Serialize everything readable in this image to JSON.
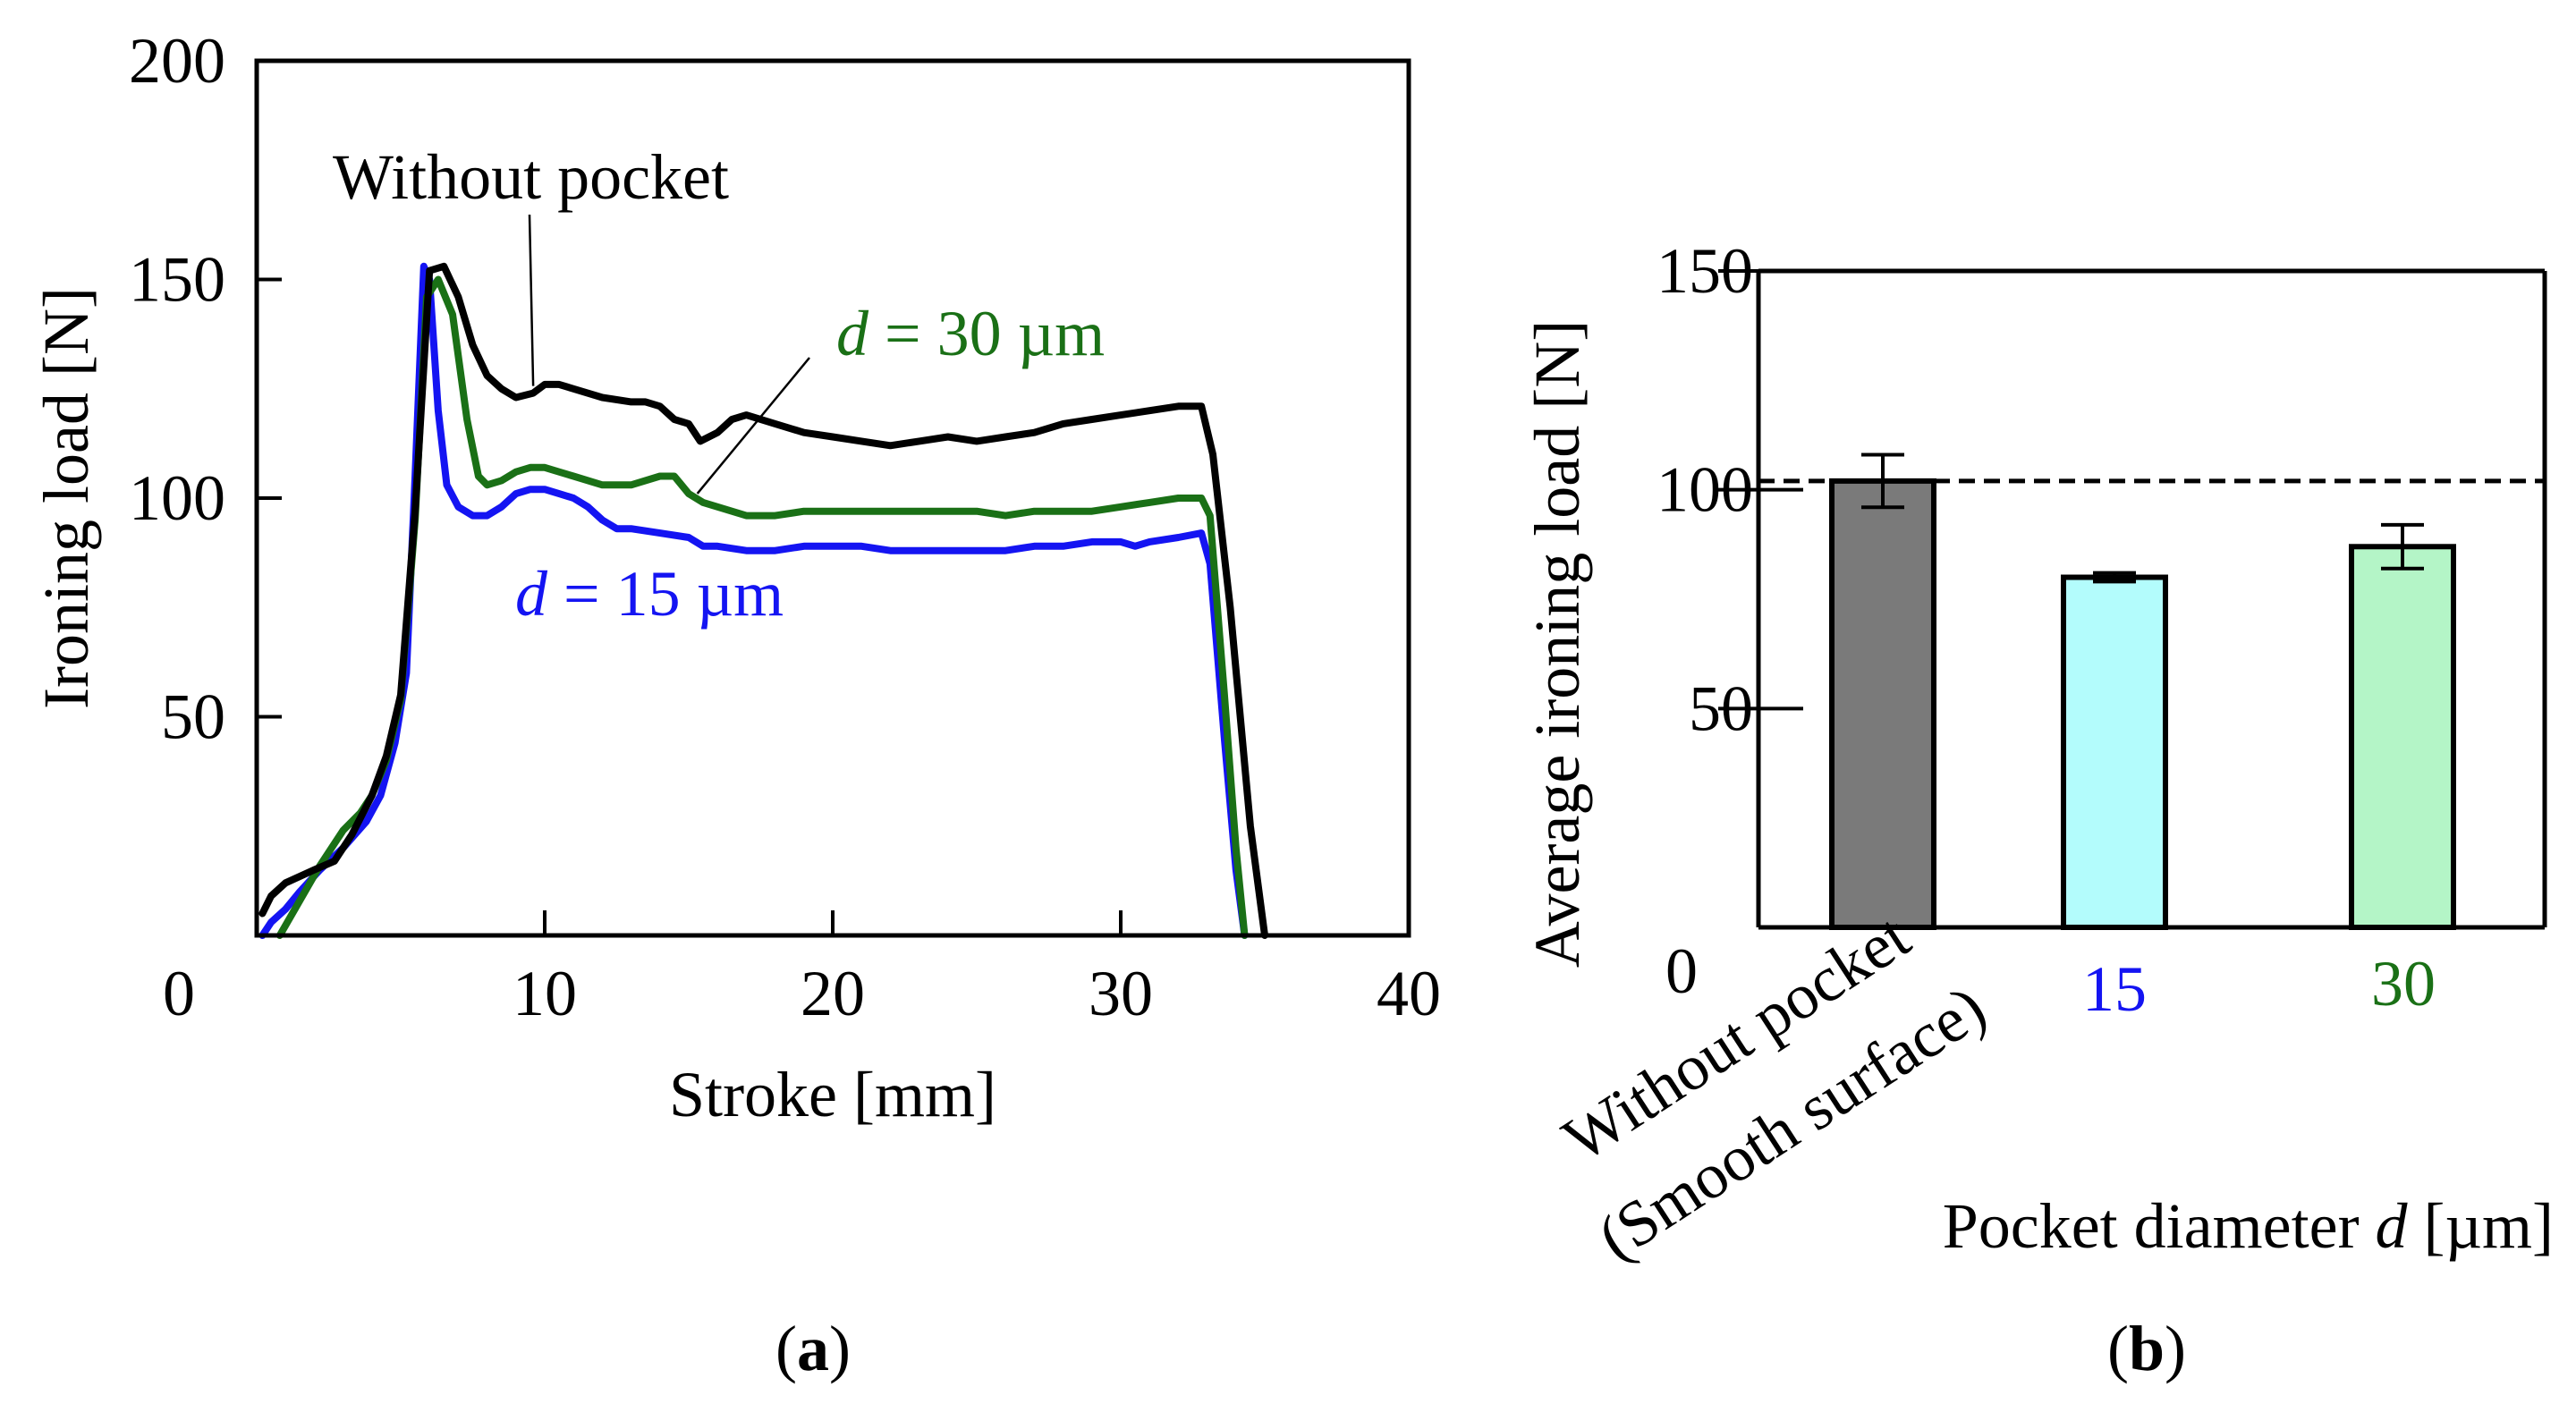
{
  "chart_data": [
    {
      "type": "line",
      "panel_label": "a",
      "xlabel": "Stroke [mm]",
      "ylabel": "Ironing load [N]",
      "xlim": [
        0,
        40
      ],
      "ylim": [
        0,
        200
      ],
      "xticks": [
        0,
        10,
        20,
        30,
        40
      ],
      "yticks": [
        50,
        100,
        150,
        200
      ],
      "x_zero_label": "0",
      "series": [
        {
          "name": "Without pocket",
          "color": "#000000",
          "points": [
            [
              0.2,
              5
            ],
            [
              0.5,
              9
            ],
            [
              1,
              12
            ],
            [
              2,
              15
            ],
            [
              2.7,
              17
            ],
            [
              3.3,
              23
            ],
            [
              4,
              32
            ],
            [
              4.5,
              41
            ],
            [
              5,
              55
            ],
            [
              5.5,
              97
            ],
            [
              6,
              152
            ],
            [
              6.5,
              153
            ],
            [
              7,
              146
            ],
            [
              7.5,
              135
            ],
            [
              8,
              128
            ],
            [
              8.5,
              125
            ],
            [
              9,
              123
            ],
            [
              9.6,
              124
            ],
            [
              10,
              126
            ],
            [
              10.5,
              126
            ],
            [
              11,
              125
            ],
            [
              12,
              123
            ],
            [
              13,
              122
            ],
            [
              13.5,
              122
            ],
            [
              14,
              121
            ],
            [
              14.5,
              118
            ],
            [
              15,
              117
            ],
            [
              15.4,
              113
            ],
            [
              16,
              115
            ],
            [
              16.5,
              118
            ],
            [
              17,
              119
            ],
            [
              18,
              117
            ],
            [
              19,
              115
            ],
            [
              20,
              114
            ],
            [
              21,
              113
            ],
            [
              22,
              112
            ],
            [
              23,
              113
            ],
            [
              24,
              114
            ],
            [
              25,
              113
            ],
            [
              26,
              114
            ],
            [
              27,
              115
            ],
            [
              28,
              117
            ],
            [
              29,
              118
            ],
            [
              30,
              119
            ],
            [
              31,
              120
            ],
            [
              32,
              121
            ],
            [
              32.8,
              121
            ],
            [
              33.2,
              110
            ],
            [
              33.8,
              75
            ],
            [
              34.5,
              25
            ],
            [
              35,
              0
            ]
          ]
        },
        {
          "name": "d = 30 µm",
          "d_value": "30 µm",
          "color": "#1a7016",
          "points": [
            [
              0.8,
              0
            ],
            [
              1.5,
              8
            ],
            [
              2.2,
              16
            ],
            [
              3,
              24
            ],
            [
              3.6,
              28
            ],
            [
              4,
              32
            ],
            [
              4.5,
              40
            ],
            [
              5,
              54
            ],
            [
              5.5,
              95
            ],
            [
              5.9,
              146
            ],
            [
              6.3,
              150
            ],
            [
              6.8,
              142
            ],
            [
              7.3,
              118
            ],
            [
              7.7,
              105
            ],
            [
              8,
              103
            ],
            [
              8.5,
              104
            ],
            [
              9,
              106
            ],
            [
              9.5,
              107
            ],
            [
              10,
              107
            ],
            [
              10.5,
              106
            ],
            [
              11,
              105
            ],
            [
              12,
              103
            ],
            [
              12.5,
              103
            ],
            [
              13,
              103
            ],
            [
              14,
              105
            ],
            [
              14.5,
              105
            ],
            [
              15,
              101
            ],
            [
              15.5,
              99
            ],
            [
              16,
              98
            ],
            [
              17,
              96
            ],
            [
              18,
              96
            ],
            [
              19,
              97
            ],
            [
              20,
              97
            ],
            [
              21,
              97
            ],
            [
              22,
              97
            ],
            [
              23,
              97
            ],
            [
              24,
              97
            ],
            [
              25,
              97
            ],
            [
              26,
              96
            ],
            [
              27,
              97
            ],
            [
              28,
              97
            ],
            [
              29,
              97
            ],
            [
              30,
              98
            ],
            [
              31,
              99
            ],
            [
              32,
              100
            ],
            [
              32.8,
              100
            ],
            [
              33.1,
              96
            ],
            [
              33.6,
              55
            ],
            [
              34,
              20
            ],
            [
              34.3,
              0
            ]
          ]
        },
        {
          "name": "d = 15 µm",
          "d_value": "15 µm",
          "color": "#1414f2",
          "points": [
            [
              0.2,
              0
            ],
            [
              0.5,
              3
            ],
            [
              1,
              6
            ],
            [
              1.5,
              10
            ],
            [
              2.2,
              15
            ],
            [
              3,
              20
            ],
            [
              3.8,
              26
            ],
            [
              4.3,
              32
            ],
            [
              4.8,
              44
            ],
            [
              5.2,
              60
            ],
            [
              5.5,
              105
            ],
            [
              5.8,
              153
            ],
            [
              6,
              150
            ],
            [
              6.3,
              120
            ],
            [
              6.6,
              103
            ],
            [
              7,
              98
            ],
            [
              7.5,
              96
            ],
            [
              8,
              96
            ],
            [
              8.5,
              98
            ],
            [
              9,
              101
            ],
            [
              9.5,
              102
            ],
            [
              10,
              102
            ],
            [
              10.5,
              101
            ],
            [
              11,
              100
            ],
            [
              11.5,
              98
            ],
            [
              12,
              95
            ],
            [
              12.5,
              93
            ],
            [
              13,
              93
            ],
            [
              14,
              92
            ],
            [
              15,
              91
            ],
            [
              15.5,
              89
            ],
            [
              16,
              89
            ],
            [
              17,
              88
            ],
            [
              18,
              88
            ],
            [
              19,
              89
            ],
            [
              20,
              89
            ],
            [
              21,
              89
            ],
            [
              22,
              88
            ],
            [
              23,
              88
            ],
            [
              24,
              88
            ],
            [
              25,
              88
            ],
            [
              26,
              88
            ],
            [
              27,
              89
            ],
            [
              28,
              89
            ],
            [
              29,
              90
            ],
            [
              30,
              90
            ],
            [
              30.5,
              89
            ],
            [
              31,
              90
            ],
            [
              32,
              91
            ],
            [
              32.8,
              92
            ],
            [
              33.1,
              85
            ],
            [
              33.6,
              45
            ],
            [
              34,
              15
            ],
            [
              34.3,
              0
            ]
          ]
        }
      ],
      "annotations": [
        {
          "text": "Without pocket",
          "series": "Without pocket",
          "at_x": 9.6
        },
        {
          "text_prefix": "d",
          "text_value": " = 30 µm",
          "series": "d = 30 µm",
          "at_x": 15.3
        },
        {
          "text_prefix": "d",
          "text_value": " = 15 µm",
          "series": "d = 15 µm"
        }
      ]
    },
    {
      "type": "bar",
      "panel_label": "b",
      "title": "",
      "xlabel_prefix": "Pocket diameter ",
      "xlabel_var": "d",
      "xlabel_suffix": " [µm]",
      "ylabel": "Average ironing load [N]",
      "ylim": [
        0,
        150
      ],
      "yticks": [
        50,
        100,
        150
      ],
      "y_zero_label": "0",
      "reference_line": 102,
      "categories": [
        {
          "label": "Without pocket",
          "label_line2": "(Smooth surface)",
          "color": "#000000"
        },
        {
          "label": "15",
          "color": "#1414f2"
        },
        {
          "label": "30",
          "color": "#1a7016"
        }
      ],
      "values": [
        102,
        80,
        87
      ],
      "errors": [
        6,
        1,
        5
      ],
      "bar_colors": [
        "#7a7a7a",
        "#b3fcfc",
        "#b4f5c7"
      ]
    }
  ]
}
